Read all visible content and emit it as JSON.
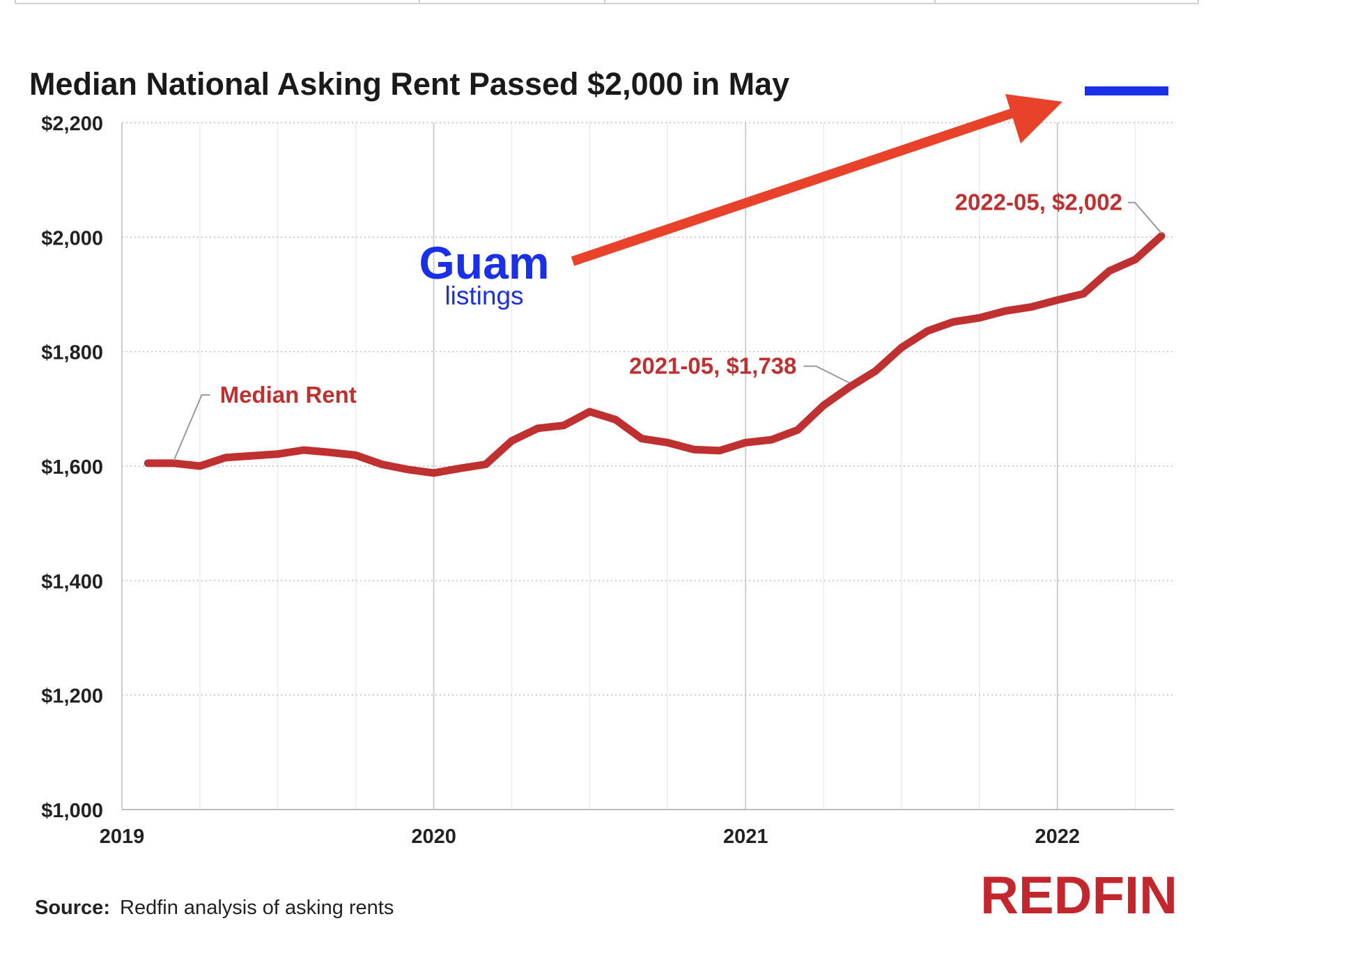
{
  "chart_data": {
    "type": "line",
    "title": "Median National Asking Rent Passed $2,000 in May",
    "xlabel": "",
    "ylabel": "",
    "ylim": [
      1000,
      2200
    ],
    "xlim": [
      "2019-01",
      "2022-05"
    ],
    "y_ticks": [
      "$1,000",
      "$1,200",
      "$1,400",
      "$1,600",
      "$1,800",
      "$2,000",
      "$2,200"
    ],
    "y_tick_values": [
      1000,
      1200,
      1400,
      1600,
      1800,
      2000,
      2200
    ],
    "x_ticks": [
      "2019",
      "2020",
      "2021",
      "2022"
    ],
    "grid": true,
    "series": [
      {
        "name": "Median Rent",
        "color": "#bf3030",
        "x": [
          "2019-02",
          "2019-03",
          "2019-04",
          "2019-05",
          "2019-06",
          "2019-07",
          "2019-08",
          "2019-09",
          "2019-10",
          "2019-11",
          "2019-12",
          "2020-01",
          "2020-02",
          "2020-03",
          "2020-04",
          "2020-05",
          "2020-06",
          "2020-07",
          "2020-08",
          "2020-09",
          "2020-10",
          "2020-11",
          "2020-12",
          "2021-01",
          "2021-02",
          "2021-03",
          "2021-04",
          "2021-05",
          "2021-06",
          "2021-07",
          "2021-08",
          "2021-09",
          "2021-10",
          "2021-11",
          "2021-12",
          "2022-01",
          "2022-02",
          "2022-03",
          "2022-04",
          "2022-05"
        ],
        "values": [
          1605,
          1605,
          1600,
          1615,
          1618,
          1621,
          1628,
          1624,
          1619,
          1603,
          1594,
          1588,
          1596,
          1603,
          1644,
          1666,
          1671,
          1695,
          1681,
          1648,
          1641,
          1629,
          1627,
          1641,
          1646,
          1663,
          1706,
          1738,
          1766,
          1807,
          1836,
          1852,
          1859,
          1871,
          1878,
          1890,
          1901,
          1941,
          1961,
          2002
        ]
      }
    ],
    "annotations": [
      {
        "text": "Median Rent",
        "x": "2019-03",
        "y": 1605
      },
      {
        "text": "2021-05, $1,738",
        "x": "2021-05",
        "y": 1738
      },
      {
        "text": "2022-05, $2,002",
        "x": "2022-05",
        "y": 2002
      }
    ]
  },
  "overlay": {
    "headline": "Guam",
    "subline": "listings",
    "headline_color": "#1a2fe8",
    "arrow_color": "#e8432a"
  },
  "footer": {
    "source_label": "Source:",
    "source_text": "Redfin analysis of asking rents",
    "brand": "REDFIN",
    "brand_color": "#c1272d"
  }
}
